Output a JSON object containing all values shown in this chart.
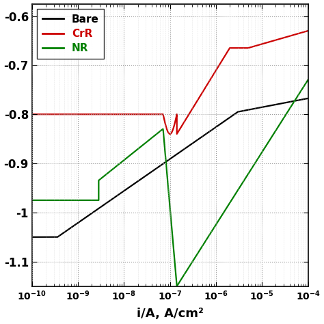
{
  "title": "",
  "xlabel": "i/A, A/cm²",
  "ylabel": "",
  "xlim_log": [
    -10,
    -4
  ],
  "ylim": [
    -1.15,
    -0.575
  ],
  "yticks": [
    -1.1,
    -1.0,
    -0.9,
    -0.8,
    -0.7,
    -0.6
  ],
  "ytick_labels": [
    "-1.1",
    "-1",
    "-0.9",
    "-0.8",
    "-0.7",
    "-0.6"
  ],
  "legend": [
    "Bare",
    "CrR",
    "NR"
  ],
  "legend_colors": [
    "#000000",
    "#cc0000",
    "#008000"
  ],
  "background_color": "#ffffff",
  "grid_color": "#999999",
  "line_width": 1.6
}
